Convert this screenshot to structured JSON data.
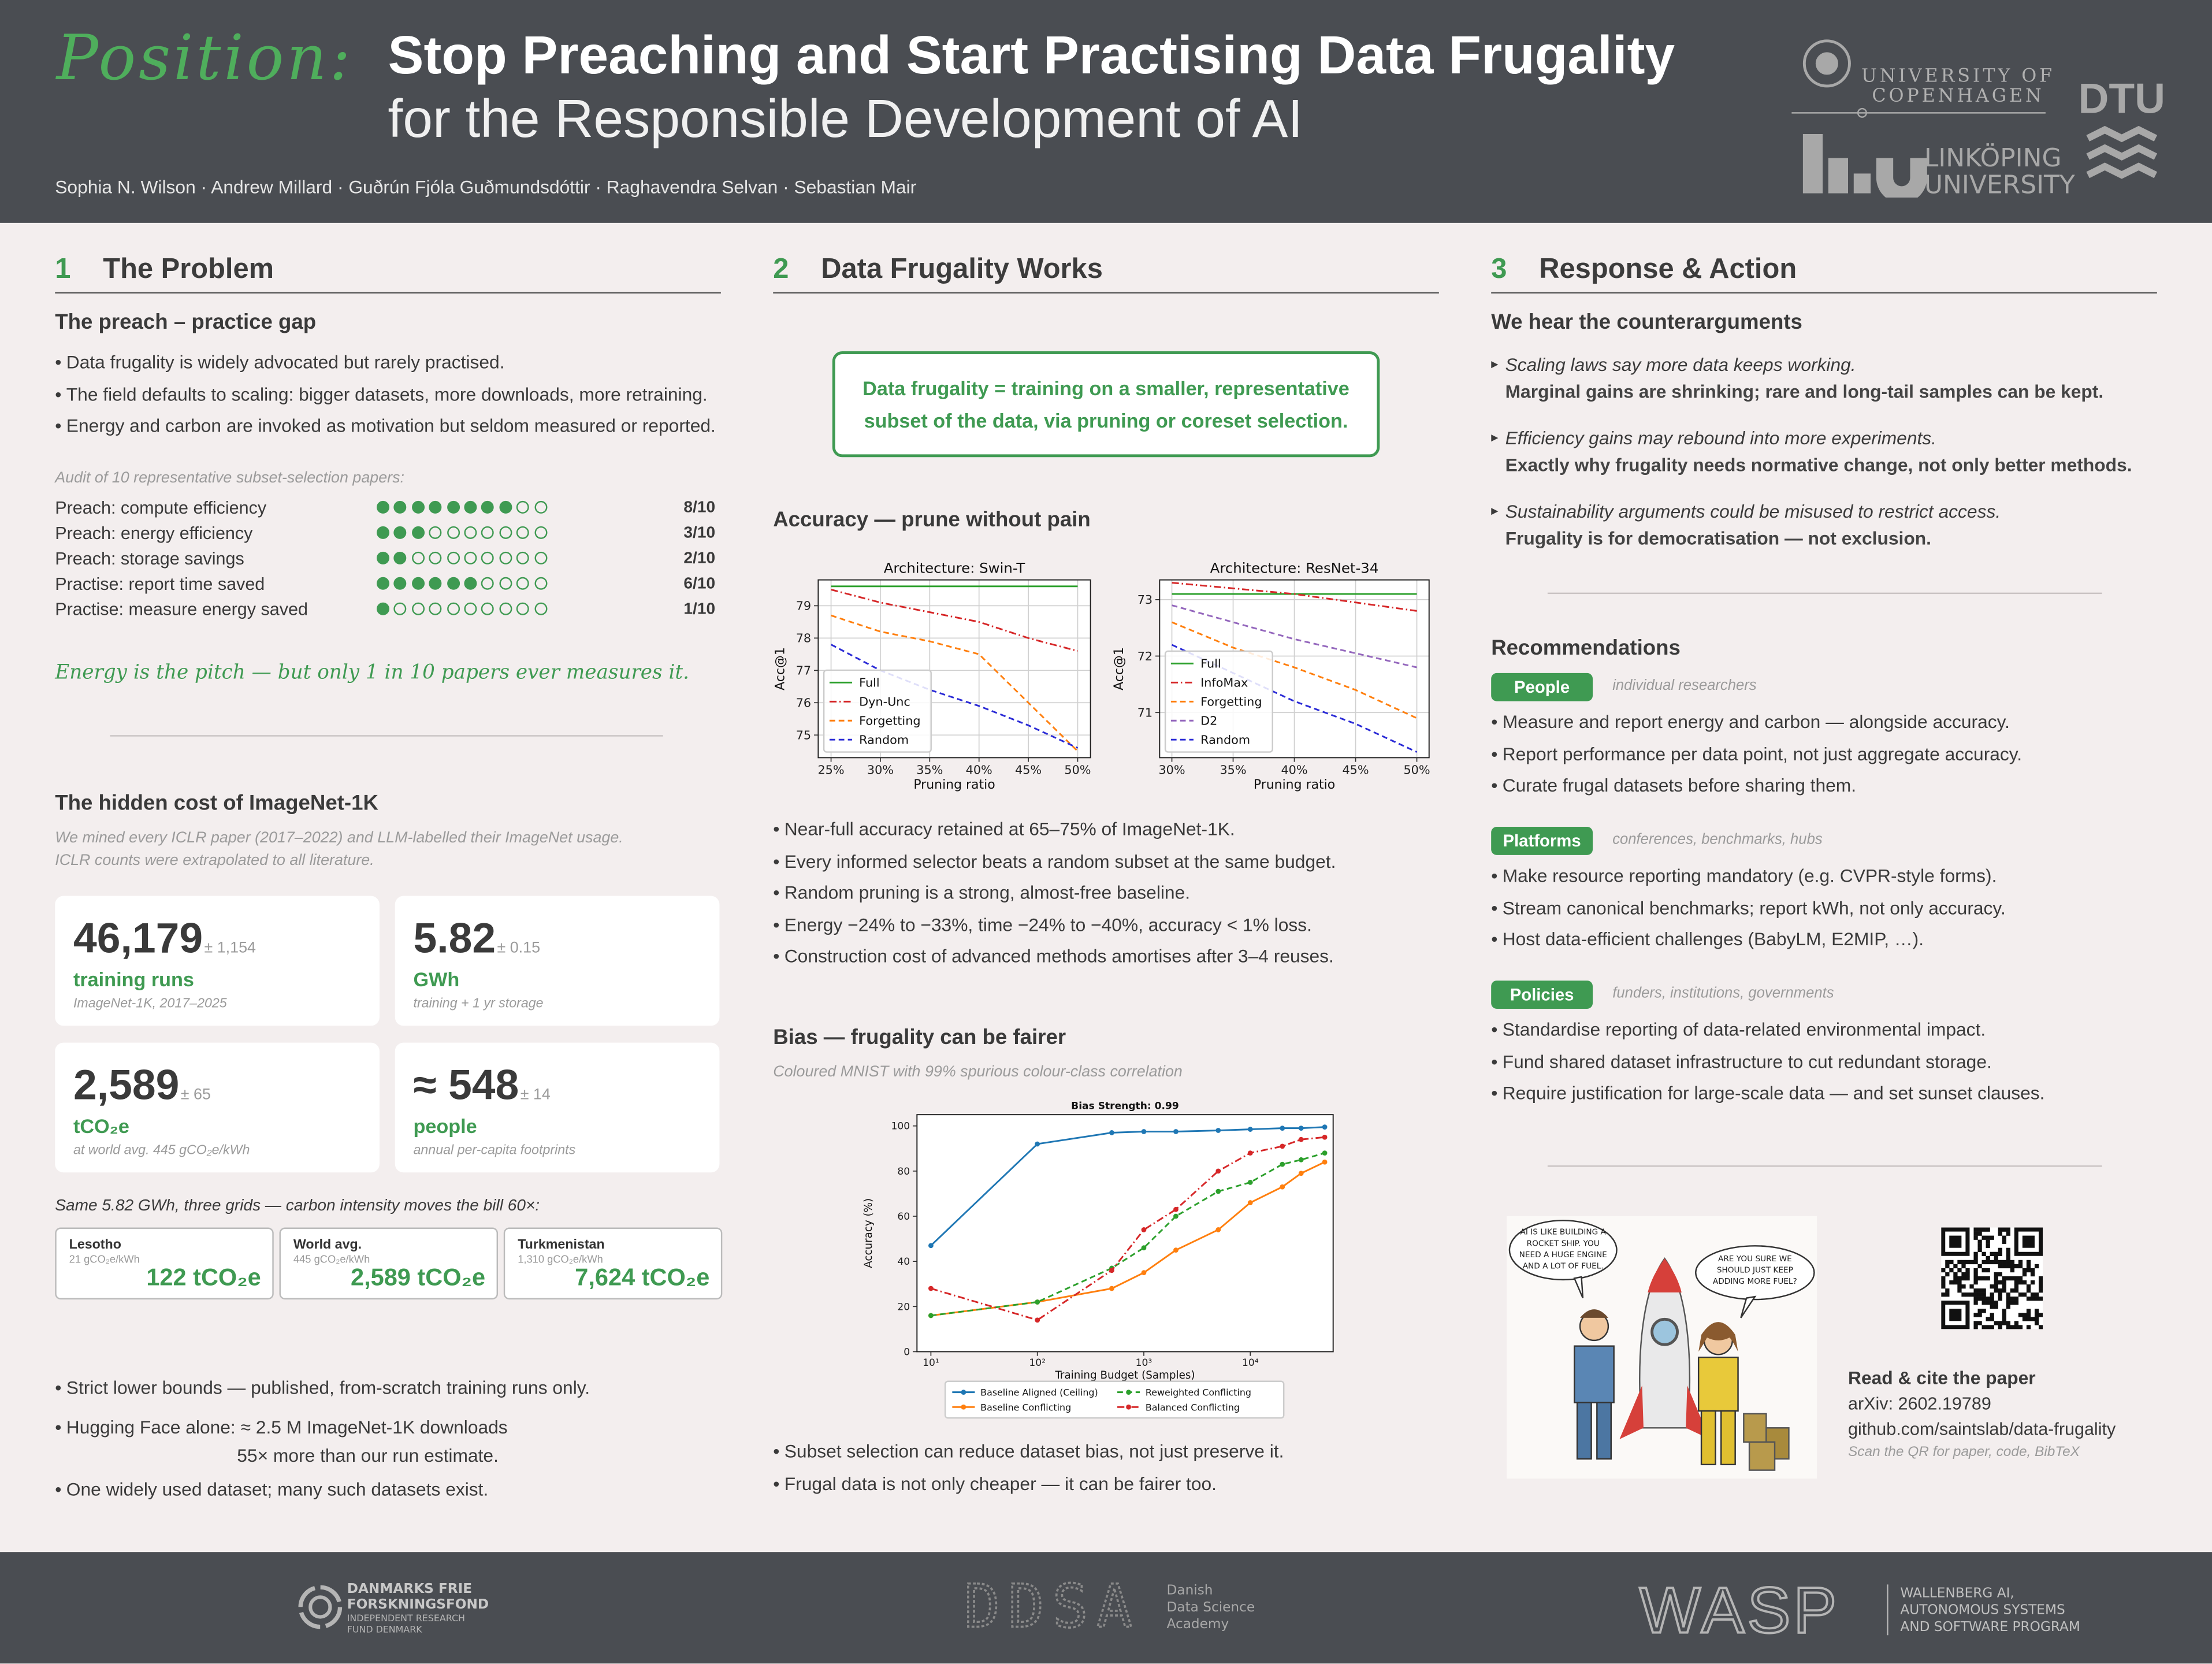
{
  "header": {
    "kicker": "Position:",
    "title": "Stop Preaching and Start Practising Data Frugality",
    "subtitle": "for the Responsible Development of AI",
    "authors": "Sophia N. Wilson · Andrew Millard · Guðrún Fjóla Guðmundsdóttir · Raghavendra Selvan · Sebastian Mair",
    "logos": {
      "copenhagen": [
        "UNIVERSITY OF",
        "COPENHAGEN"
      ],
      "linkoping": [
        "LINKÖPING",
        "UNIVERSITY"
      ],
      "dtu": "DTU"
    }
  },
  "problem": {
    "number": "1",
    "title": "The Problem",
    "subheading": "The preach – practice gap",
    "bullets": [
      "Data frugality is widely advocated but rarely practised.",
      "The field defaults to scaling: bigger datasets, more downloads, more retraining.",
      "Energy and carbon are invoked as motivation but seldom measured or reported."
    ],
    "audit": {
      "caption": "Audit of 10 representative subset-selection papers:",
      "rows": [
        {
          "label": "Preach: compute efficiency",
          "value": 8,
          "total": 10,
          "value_label": "8/10"
        },
        {
          "label": "Preach: energy efficiency",
          "value": 3,
          "total": 10,
          "value_label": "3/10"
        },
        {
          "label": "Preach: storage savings",
          "value": 2,
          "total": 10,
          "value_label": "2/10"
        },
        {
          "label": "Practise: report time saved",
          "value": 6,
          "total": 10,
          "value_label": "6/10"
        },
        {
          "label": "Practise: measure energy saved",
          "value": 1,
          "total": 10,
          "value_label": "1/10"
        }
      ]
    },
    "quote": "Energy is the pitch — but only 1 in 10 papers ever measures it.",
    "cost": {
      "heading": "The hidden cost of ImageNet-1K",
      "note": [
        "We mined every ICLR paper (2017–2022) and LLM-labelled their ImageNet usage.",
        "ICLR counts were extrapolated to all literature."
      ],
      "cards": [
        {
          "value": "46,179",
          "error": "± 1,154",
          "label": "training runs",
          "note": "ImageNet-1K, 2017–2025"
        },
        {
          "value": "5.82",
          "error": "± 0.15",
          "label": "GWh",
          "note": "training + 1 yr storage"
        },
        {
          "value": "2,589",
          "error": "± 65",
          "label": "tCO₂e",
          "note": "at world avg. 445 gCO₂e/kWh"
        },
        {
          "value": "≈ 548",
          "error": "± 14",
          "label": "people",
          "note": "annual per-capita footprints"
        }
      ],
      "grids_caption": "Same 5.82 GWh, three grids — carbon intensity moves the bill 60×:",
      "grids": [
        {
          "name": "Lesotho",
          "intensity": "21 gCO₂e/kWh",
          "total": "122 tCO₂e"
        },
        {
          "name": "World avg.",
          "intensity": "445 gCO₂e/kWh",
          "total": "2,589 tCO₂e"
        },
        {
          "name": "Turkmenistan",
          "intensity": "1,310 gCO₂e/kWh",
          "total": "7,624 tCO₂e"
        }
      ],
      "bullets": [
        [
          "Strict lower bounds — published, from-scratch training runs only."
        ],
        [
          "Hugging Face alone: ≈ 2.5 M ImageNet-1K downloads",
          "55× more than our run estimate."
        ],
        [
          "One widely used dataset; many such datasets exist."
        ]
      ]
    }
  },
  "works": {
    "number": "2",
    "title": "Data Frugality Works",
    "callout": "Data frugality = training on a smaller, representative subset of the data, via pruning or coreset selection.",
    "accuracy": {
      "heading": "Accuracy — prune without pain",
      "bullets": [
        "Near-full accuracy retained at 65–75% of ImageNet-1K.",
        "Every informed selector beats a random subset at the same budget.",
        "Random pruning is a strong, almost-free baseline.",
        "Energy −24% to −33%, time −24% to −40%, accuracy < 1% loss.",
        "Construction cost of advanced methods amortises after 3–4 reuses."
      ]
    },
    "bias": {
      "heading": "Bias — frugality can be fairer",
      "caption": "Coloured MNIST with 99% spurious colour-class correlation",
      "bullets": [
        "Subset selection can reduce dataset bias, not just preserve it.",
        "Frugal data is not only cheaper — it can be fairer too."
      ]
    }
  },
  "response": {
    "number": "3",
    "title": "Response & Action",
    "subheading": "We hear the counterarguments",
    "counterarguments": [
      {
        "claim": "Scaling laws say more data keeps working.",
        "response": "Marginal gains are shrinking; rare and long-tail samples can be kept."
      },
      {
        "claim": "Efficiency gains may rebound into more experiments.",
        "response": "Exactly why frugality needs normative change, not only better methods."
      },
      {
        "claim": "Sustainability arguments could be misused to restrict access.",
        "response": "Frugality is for democratisation — not exclusion."
      }
    ],
    "recommendations": {
      "heading": "Recommendations",
      "groups": [
        {
          "tag": "People",
          "audience": "individual researchers",
          "items": [
            "Measure and report energy and carbon — alongside accuracy.",
            "Report performance per data point, not just aggregate accuracy.",
            "Curate frugal datasets before sharing them."
          ]
        },
        {
          "tag": "Platforms",
          "audience": "conferences, benchmarks, hubs",
          "items": [
            "Make resource reporting mandatory (e.g. CVPR-style forms).",
            "Stream canonical benchmarks; report kWh, not only accuracy.",
            "Host data-efficient challenges (BabyLM, E2MIP, …)."
          ]
        },
        {
          "tag": "Policies",
          "audience": "funders, institutions, governments",
          "items": [
            "Standardise reporting of data-related environmental impact.",
            "Fund shared dataset infrastructure to cut redundant storage.",
            "Require justification for large-scale data — and set sunset clauses."
          ]
        }
      ]
    },
    "comic": {
      "bubbles": [
        {
          "lines": [
            "AI IS LIKE BUILDING A",
            "ROCKET SHIP. YOU",
            "NEED A HUGE ENGINE",
            "AND A LOT OF FUEL."
          ]
        },
        {
          "lines": [
            "ARE YOU SURE WE",
            "SHOULD JUST KEEP",
            "ADDING MORE FUEL?"
          ]
        }
      ]
    },
    "cite": {
      "heading": "Read & cite the paper",
      "arxiv": "arXiv: 2602.19789",
      "url": "github.com/saintslab/data-frugality",
      "note": "Scan the QR for paper, code, BibTeX"
    }
  },
  "footer": {
    "dff": {
      "name": [
        "DANMARKS FRIE",
        "FORSKNINGSFOND"
      ],
      "sub": [
        "INDEPENDENT RESEARCH",
        "FUND DENMARK"
      ]
    },
    "ddsa": {
      "mark": "DDSA",
      "name": [
        "Danish",
        "Data Science",
        "Academy"
      ]
    },
    "wasp": {
      "mark": "WASP",
      "name": [
        "WALLENBERG AI,",
        "AUTONOMOUS SYSTEMS",
        "AND SOFTWARE PROGRAM"
      ]
    }
  },
  "chart_data": [
    {
      "type": "line",
      "title": "Architecture: Swin-T",
      "xlabel": "Pruning ratio",
      "ylabel": "Acc@1",
      "x": [
        25,
        30,
        35,
        40,
        45,
        50
      ],
      "xlim": [
        23.7,
        51.3
      ],
      "xticks": [
        {
          "value": 25,
          "label": "25%"
        },
        {
          "value": 30,
          "label": "30%"
        },
        {
          "value": 35,
          "label": "35%"
        },
        {
          "value": 40,
          "label": "40%"
        },
        {
          "value": 45,
          "label": "45%"
        },
        {
          "value": 50,
          "label": "50%"
        }
      ],
      "ylim": [
        74.3,
        79.8
      ],
      "yticks": [
        75,
        76,
        77,
        78,
        79
      ],
      "grid": true,
      "legend": "lower left",
      "series": [
        {
          "name": "Full",
          "color": "#2ca02c",
          "style": "solid",
          "values": [
            79.6,
            79.6,
            79.6,
            79.6,
            79.6,
            79.6
          ]
        },
        {
          "name": "Dyn-Unc",
          "color": "#d62728",
          "style": "dashdot",
          "values": [
            79.5,
            79.1,
            78.8,
            78.5,
            78.0,
            77.6
          ]
        },
        {
          "name": "Forgetting",
          "color": "#ff7f0e",
          "style": "dashed",
          "values": [
            78.7,
            78.2,
            77.9,
            77.5,
            76.0,
            74.5
          ]
        },
        {
          "name": "Random",
          "color": "#2b2bd6",
          "style": "dashed",
          "values": [
            77.8,
            77.0,
            76.4,
            75.9,
            75.3,
            74.6
          ]
        }
      ]
    },
    {
      "type": "line",
      "title": "Architecture: ResNet-34",
      "xlabel": "Pruning ratio",
      "ylabel": "Acc@1",
      "x": [
        30,
        35,
        40,
        45,
        50
      ],
      "xlim": [
        29,
        51
      ],
      "xticks": [
        {
          "value": 30,
          "label": "30%"
        },
        {
          "value": 35,
          "label": "35%"
        },
        {
          "value": 40,
          "label": "40%"
        },
        {
          "value": 45,
          "label": "45%"
        },
        {
          "value": 50,
          "label": "50%"
        }
      ],
      "ylim": [
        70.2,
        73.35
      ],
      "yticks": [
        71,
        72,
        73
      ],
      "grid": true,
      "legend": "lower left",
      "series": [
        {
          "name": "Full",
          "color": "#2ca02c",
          "style": "solid",
          "values": [
            73.1,
            73.1,
            73.1,
            73.1,
            73.1
          ]
        },
        {
          "name": "InfoMax",
          "color": "#d62728",
          "style": "dashdot",
          "values": [
            73.3,
            73.2,
            73.1,
            72.95,
            72.8
          ]
        },
        {
          "name": "Forgetting",
          "color": "#ff7f0e",
          "style": "dashed",
          "values": [
            72.6,
            72.15,
            71.8,
            71.4,
            70.9
          ]
        },
        {
          "name": "D2",
          "color": "#9467bd",
          "style": "dashed",
          "values": [
            72.9,
            72.6,
            72.3,
            72.05,
            71.8
          ]
        },
        {
          "name": "Random",
          "color": "#2b2bd6",
          "style": "dashed",
          "values": [
            72.2,
            71.7,
            71.2,
            70.8,
            70.3
          ]
        }
      ]
    },
    {
      "type": "line",
      "title": "Bias Strength: 0.99",
      "xlabel": "Training Budget (Samples)",
      "ylabel": "Accuracy (%)",
      "xscale": "log",
      "x": [
        10,
        100,
        500,
        1000,
        2000,
        5000,
        10000,
        20000,
        30000,
        50000
      ],
      "xlim": [
        7.4,
        60000
      ],
      "xticks": [
        {
          "value": 10,
          "label": "10¹"
        },
        {
          "value": 100,
          "label": "10²"
        },
        {
          "value": 1000,
          "label": "10³"
        },
        {
          "value": 10000,
          "label": "10⁴"
        }
      ],
      "ylim": [
        0,
        105
      ],
      "yticks": [
        0,
        20,
        40,
        60,
        80,
        100
      ],
      "grid": false,
      "legend": "below",
      "markers": true,
      "series": [
        {
          "name": "Baseline Aligned (Ceiling)",
          "color": "#1f77b4",
          "style": "solid",
          "values": [
            47,
            92,
            97,
            97.5,
            97.5,
            98,
            98.5,
            99,
            99,
            99.5
          ]
        },
        {
          "name": "Baseline Conflicting",
          "color": "#ff7f0e",
          "style": "solid",
          "values": [
            16,
            22,
            28,
            35,
            45,
            54,
            66,
            73,
            79,
            84
          ]
        },
        {
          "name": "Reweighted Conflicting",
          "color": "#2ca02c",
          "style": "dashed",
          "values": [
            16,
            22,
            37,
            46,
            60,
            71,
            75,
            83,
            85,
            88
          ]
        },
        {
          "name": "Balanced Conflicting",
          "color": "#d62728",
          "style": "dashdot",
          "values": [
            28,
            14,
            36,
            54,
            63,
            80,
            88,
            91,
            94,
            95
          ]
        }
      ]
    }
  ]
}
